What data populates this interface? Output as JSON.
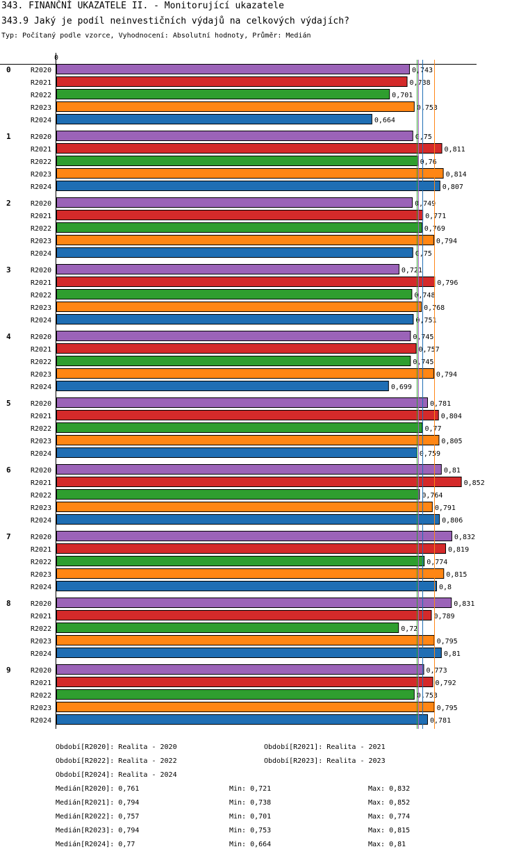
{
  "chart_data": {
    "type": "bar",
    "orientation": "horizontal",
    "title": "343. FINANČNÍ UKAZATELE II. - Monitorující ukazatele",
    "subtitle": "343.9 Jaký je podíl neinvestičních výdajů na celkových výdajích?",
    "description": "Typ: Počítaný podle vzorce, Vyhodnocení: Absolutní hodnoty, Průměr: Medián",
    "axis_zero_label": "0",
    "xlim": [
      0,
      0.952
    ],
    "categories": [
      "0",
      "1",
      "2",
      "3",
      "4",
      "5",
      "6",
      "7",
      "8",
      "9"
    ],
    "series": [
      {
        "name": "R2020",
        "color": "#9b63b8",
        "values": [
          "0,743",
          "0,75",
          "0,749",
          "0,721",
          "0,745",
          "0,781",
          "0,81",
          "0,832",
          "0,831",
          "0,773"
        ]
      },
      {
        "name": "R2021",
        "color": "#d42a2a",
        "values": [
          "0,738",
          "0,811",
          "0,771",
          "0,796",
          "0,757",
          "0,804",
          "0,852",
          "0,819",
          "0,789",
          "0,792"
        ]
      },
      {
        "name": "R2022",
        "color": "#2f9e2f",
        "values": [
          "0,701",
          "0,76",
          "0,769",
          "0,748",
          "0,745",
          "0,77",
          "0,764",
          "0,774",
          "0,72",
          "0,753"
        ]
      },
      {
        "name": "R2023",
        "color": "#ff8614",
        "values": [
          "0,753",
          "0,814",
          "0,794",
          "0,768",
          "0,794",
          "0,805",
          "0,791",
          "0,815",
          "0,795",
          "0,795"
        ]
      },
      {
        "name": "R2024",
        "color": "#1f6eb4",
        "values": [
          "0,664",
          "0,807",
          "0,75",
          "0,751",
          "0,699",
          "0,759",
          "0,806",
          "0,8",
          "0,81",
          "0,781"
        ]
      }
    ],
    "reference_lines": [
      {
        "series": "R2020",
        "value": 0.761
      },
      {
        "series": "R2021",
        "value": 0.794
      },
      {
        "series": "R2022",
        "value": 0.757
      },
      {
        "series": "R2023",
        "value": 0.794
      },
      {
        "series": "R2024",
        "value": 0.77
      }
    ],
    "legend_periods": [
      "Období[R2020]: Realita - 2020",
      "Období[R2021]: Realita - 2021",
      "Období[R2022]: Realita - 2022",
      "Období[R2023]: Realita - 2023",
      "Období[R2024]: Realita - 2024"
    ],
    "stats": [
      {
        "median": "Medián[R2020]: 0,761",
        "min": "Min: 0,721",
        "max": "Max: 0,832"
      },
      {
        "median": "Medián[R2021]: 0,794",
        "min": "Min: 0,738",
        "max": "Max: 0,852"
      },
      {
        "median": "Medián[R2022]: 0,757",
        "min": "Min: 0,701",
        "max": "Max: 0,774"
      },
      {
        "median": "Medián[R2023]: 0,794",
        "min": "Min: 0,753",
        "max": "Max: 0,815"
      },
      {
        "median": "Medián[R2024]: 0,77",
        "min": "Min: 0,664",
        "max": "Max: 0,81"
      }
    ]
  }
}
